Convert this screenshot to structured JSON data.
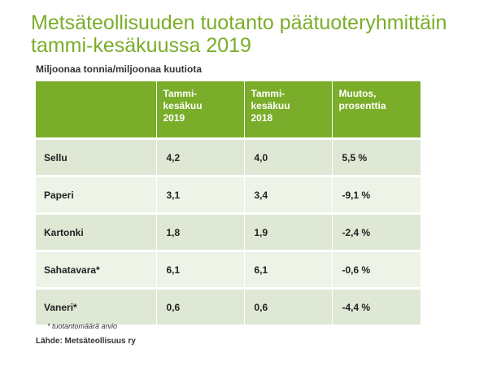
{
  "title": "Metsäteollisuuden tuotanto päätuoteryhmittäin tammi-kesäkuussa 2019",
  "subtitle": "Miljoonaa tonnia/miljoonaa kuutiota",
  "table": {
    "headers": [
      "",
      "Tammi-\nkesäkuu\n2019",
      "Tammi-\nkesäkuu\n2018",
      "Muutos,\nprosenttia"
    ],
    "rows": [
      {
        "product": "Sellu",
        "y2019": "4,2",
        "y2018": "4,0",
        "change": "5,5 %"
      },
      {
        "product": "Paperi",
        "y2019": "3,1",
        "y2018": "3,4",
        "change": "-9,1 %"
      },
      {
        "product": "Kartonki",
        "y2019": "1,8",
        "y2018": "1,9",
        "change": "-2,4 %"
      },
      {
        "product": "Sahatavara*",
        "y2019": "6,1",
        "y2018": "6,1",
        "change": "-0,6 %"
      },
      {
        "product": "Vaneri*",
        "y2019": "0,6",
        "y2018": "0,6",
        "change": "-4,4 %"
      }
    ]
  },
  "note": "* tuotantomäärä arvio",
  "source": "Lähde: Metsäteollisuus ry",
  "colors": {
    "accent": "#7aad29",
    "row_dark": "#dfe8d4",
    "row_light": "#eef3e7"
  }
}
